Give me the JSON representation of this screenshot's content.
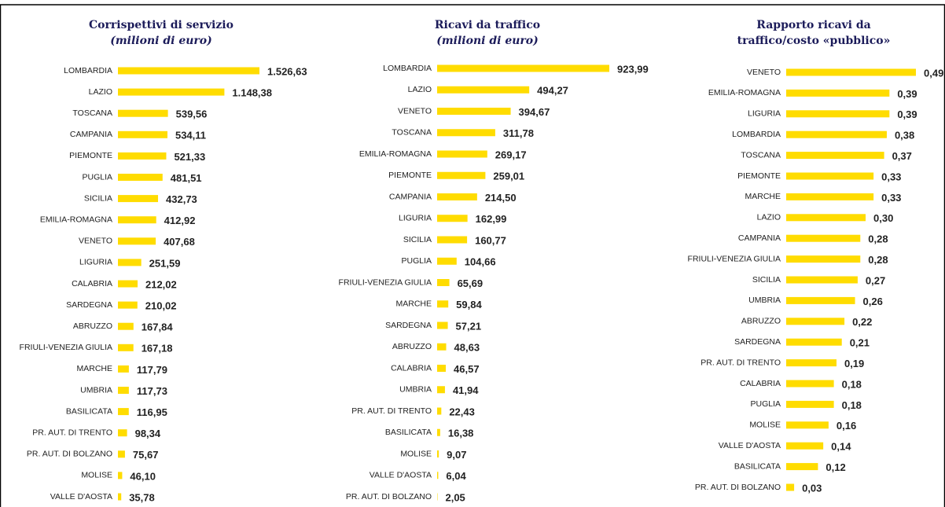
{
  "chart_data": [
    {
      "type": "bar",
      "orientation": "horizontal",
      "title": "Corrispettivi di servizio",
      "subtitle": "(milioni di euro)",
      "color": "#ffdc00",
      "categories": [
        "LOMBARDIA",
        "LAZIO",
        "TOSCANA",
        "CAMPANIA",
        "PIEMONTE",
        "PUGLIA",
        "SICILIA",
        "EMILIA-ROMAGNA",
        "VENETO",
        "LIGURIA",
        "CALABRIA",
        "SARDEGNA",
        "ABRUZZO",
        "FRIULI-VENEZIA GIULIA",
        "MARCHE",
        "UMBRIA",
        "BASILICATA",
        "PR. AUT. DI TRENTO",
        "PR. AUT. DI BOLZANO",
        "MOLISE",
        "VALLE D'AOSTA"
      ],
      "values": [
        1526.63,
        1148.38,
        539.56,
        534.11,
        521.33,
        481.51,
        432.73,
        412.92,
        407.68,
        251.59,
        212.02,
        210.02,
        167.84,
        167.18,
        117.79,
        117.73,
        116.95,
        98.34,
        75.67,
        46.1,
        35.78
      ],
      "value_labels": [
        "1.526,63",
        "1.148,38",
        "539,56",
        "534,11",
        "521,33",
        "481,51",
        "432,73",
        "412,92",
        "407,68",
        "251,59",
        "212,02",
        "210,02",
        "167,84",
        "167,18",
        "117,79",
        "117,73",
        "116,95",
        "98,34",
        "75,67",
        "46,10",
        "35,78"
      ]
    },
    {
      "type": "bar",
      "orientation": "horizontal",
      "title": "Ricavi da traffico",
      "subtitle": "(milioni di euro)",
      "color": "#ffdc00",
      "categories": [
        "LOMBARDIA",
        "LAZIO",
        "VENETO",
        "TOSCANA",
        "EMILIA-ROMAGNA",
        "PIEMONTE",
        "CAMPANIA",
        "LIGURIA",
        "SICILIA",
        "PUGLIA",
        "FRIULI-VENEZIA GIULIA",
        "MARCHE",
        "SARDEGNA",
        "ABRUZZO",
        "CALABRIA",
        "UMBRIA",
        "PR. AUT. DI TRENTO",
        "BASILICATA",
        "MOLISE",
        "VALLE D'AOSTA",
        "PR. AUT. DI BOLZANO"
      ],
      "values": [
        923.99,
        494.27,
        394.67,
        311.78,
        269.17,
        259.01,
        214.5,
        162.99,
        160.77,
        104.66,
        65.69,
        59.84,
        57.21,
        48.63,
        46.57,
        41.94,
        22.43,
        16.38,
        9.07,
        6.04,
        2.05
      ],
      "value_labels": [
        "923,99",
        "494,27",
        "394,67",
        "311,78",
        "269,17",
        "259,01",
        "214,50",
        "162,99",
        "160,77",
        "104,66",
        "65,69",
        "59,84",
        "57,21",
        "48,63",
        "46,57",
        "41,94",
        "22,43",
        "16,38",
        "9,07",
        "6,04",
        "2,05"
      ]
    },
    {
      "type": "bar",
      "orientation": "horizontal",
      "title": [
        "Rapporto ricavi da",
        "traffico/costo «pubblico»"
      ],
      "color": "#ffdc00",
      "categories": [
        "VENETO",
        "EMILIA-ROMAGNA",
        "LIGURIA",
        "LOMBARDIA",
        "TOSCANA",
        "PIEMONTE",
        "MARCHE",
        "LAZIO",
        "CAMPANIA",
        "FRIULI-VENEZIA GIULIA",
        "SICILIA",
        "UMBRIA",
        "ABRUZZO",
        "SARDEGNA",
        "PR. AUT. DI TRENTO",
        "CALABRIA",
        "PUGLIA",
        "MOLISE",
        "VALLE D'AOSTA",
        "BASILICATA",
        "PR. AUT. DI BOLZANO"
      ],
      "values": [
        0.49,
        0.39,
        0.39,
        0.38,
        0.37,
        0.33,
        0.33,
        0.3,
        0.28,
        0.28,
        0.27,
        0.26,
        0.22,
        0.21,
        0.19,
        0.18,
        0.18,
        0.16,
        0.14,
        0.12,
        0.03
      ],
      "value_labels": [
        "0,49",
        "0,39",
        "0,39",
        "0,38",
        "0,37",
        "0,33",
        "0,33",
        "0,30",
        "0,28",
        "0,28",
        "0,27",
        "0,26",
        "0,22",
        "0,21",
        "0,19",
        "0,18",
        "0,18",
        "0,16",
        "0,14",
        "0,12",
        "0,03"
      ]
    }
  ]
}
